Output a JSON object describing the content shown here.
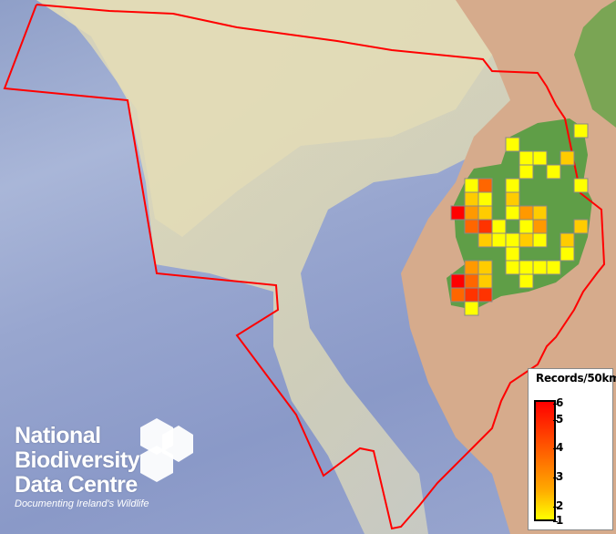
{
  "legend": {
    "title": "Records/50km",
    "ticks": [
      {
        "value": 6,
        "label": "6"
      },
      {
        "value": 5,
        "label": "5"
      },
      {
        "value": 4,
        "label": "4"
      },
      {
        "value": 3,
        "label": "3"
      },
      {
        "value": 2,
        "label": "2"
      },
      {
        "value": 1,
        "label": "1"
      }
    ],
    "colors": {
      "1": "#ffff00",
      "2": "#ffcc00",
      "3": "#ff9900",
      "4": "#ff6600",
      "5": "#ff3300",
      "6": "#ff0000"
    }
  },
  "logo": {
    "line1": "National",
    "line2": "Biodiversity",
    "line3": "Data Centre",
    "tagline": "Documenting Ireland's Wildlife"
  },
  "grid_records": [
    {
      "col": 9,
      "row": 0,
      "records": 1
    },
    {
      "col": 4,
      "row": 1,
      "records": 1
    },
    {
      "col": 5,
      "row": 2,
      "records": 1
    },
    {
      "col": 6,
      "row": 2,
      "records": 1
    },
    {
      "col": 8,
      "row": 2,
      "records": 2
    },
    {
      "col": 5,
      "row": 3,
      "records": 1
    },
    {
      "col": 7,
      "row": 3,
      "records": 1
    },
    {
      "col": 1,
      "row": 4,
      "records": 1
    },
    {
      "col": 2,
      "row": 4,
      "records": 4
    },
    {
      "col": 4,
      "row": 4,
      "records": 1
    },
    {
      "col": 9,
      "row": 4,
      "records": 1
    },
    {
      "col": 1,
      "row": 5,
      "records": 2
    },
    {
      "col": 2,
      "row": 5,
      "records": 1
    },
    {
      "col": 4,
      "row": 5,
      "records": 2
    },
    {
      "col": 0,
      "row": 6,
      "records": 6
    },
    {
      "col": 1,
      "row": 6,
      "records": 3
    },
    {
      "col": 2,
      "row": 6,
      "records": 2
    },
    {
      "col": 4,
      "row": 6,
      "records": 1
    },
    {
      "col": 5,
      "row": 6,
      "records": 3
    },
    {
      "col": 6,
      "row": 6,
      "records": 2
    },
    {
      "col": 1,
      "row": 7,
      "records": 4
    },
    {
      "col": 2,
      "row": 7,
      "records": 5
    },
    {
      "col": 3,
      "row": 7,
      "records": 1
    },
    {
      "col": 5,
      "row": 7,
      "records": 1
    },
    {
      "col": 6,
      "row": 7,
      "records": 3
    },
    {
      "col": 9,
      "row": 7,
      "records": 2
    },
    {
      "col": 2,
      "row": 8,
      "records": 2
    },
    {
      "col": 3,
      "row": 8,
      "records": 1
    },
    {
      "col": 4,
      "row": 8,
      "records": 1
    },
    {
      "col": 5,
      "row": 8,
      "records": 2
    },
    {
      "col": 6,
      "row": 8,
      "records": 1
    },
    {
      "col": 8,
      "row": 8,
      "records": 2
    },
    {
      "col": 4,
      "row": 9,
      "records": 1
    },
    {
      "col": 8,
      "row": 9,
      "records": 1
    },
    {
      "col": 1,
      "row": 10,
      "records": 3
    },
    {
      "col": 2,
      "row": 10,
      "records": 2
    },
    {
      "col": 4,
      "row": 10,
      "records": 1
    },
    {
      "col": 5,
      "row": 10,
      "records": 1
    },
    {
      "col": 6,
      "row": 10,
      "records": 1
    },
    {
      "col": 7,
      "row": 10,
      "records": 1
    },
    {
      "col": 0,
      "row": 11,
      "records": 6
    },
    {
      "col": 1,
      "row": 11,
      "records": 4
    },
    {
      "col": 2,
      "row": 11,
      "records": 2
    },
    {
      "col": 5,
      "row": 11,
      "records": 1
    },
    {
      "col": 0,
      "row": 12,
      "records": 4
    },
    {
      "col": 1,
      "row": 12,
      "records": 5
    },
    {
      "col": 2,
      "row": 12,
      "records": 5
    },
    {
      "col": 1,
      "row": 13,
      "records": 1
    }
  ],
  "boundary_color": "#ff0000"
}
